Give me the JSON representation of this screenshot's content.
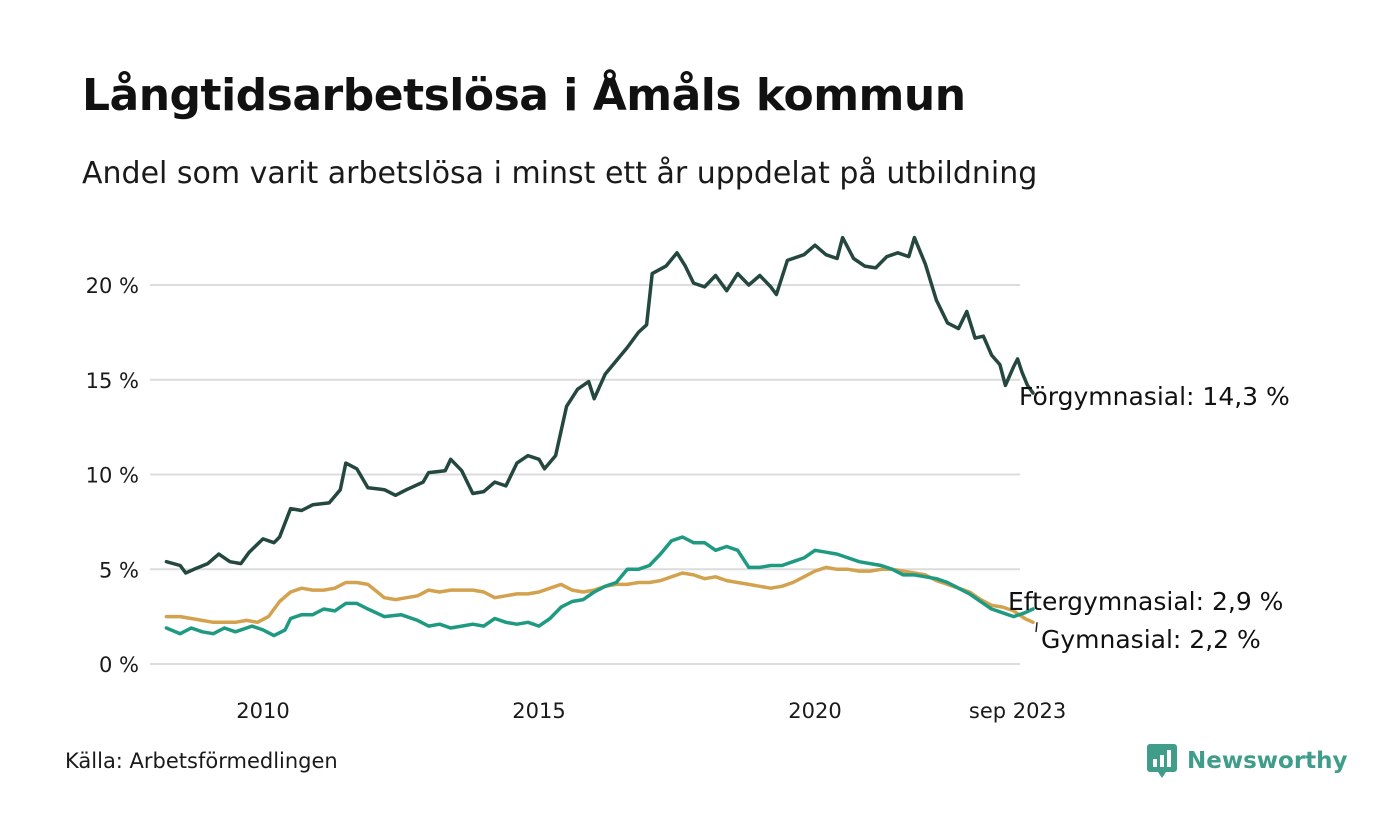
{
  "header": {
    "title": "Långtidsarbetslösa i Åmåls kommun",
    "subtitle": "Andel som varit arbetslösa i minst ett år uppdelat på utbildning"
  },
  "footer": {
    "source": "Källa: Arbetsförmedlingen",
    "brand": "Newsworthy"
  },
  "colors": {
    "forgymnasial": "#24473f",
    "eftergymnasial": "#1f9a82",
    "gymnasial": "#d3a24f",
    "grid": "#dcdcdc",
    "brand": "#3f9d8a"
  },
  "chart_data": {
    "type": "line",
    "title": "Långtidsarbetslösa i Åmåls kommun",
    "subtitle": "Andel som varit arbetslösa i minst ett år uppdelat på utbildning",
    "xlabel": "",
    "ylabel": "",
    "x_range": [
      2008.25,
      2023.67
    ],
    "ylim": [
      0,
      22.5
    ],
    "y_ticks": [
      0,
      5,
      10,
      15,
      20
    ],
    "y_tick_labels": [
      "0 %",
      "5 %",
      "10 %",
      "15 %",
      "20 %"
    ],
    "x_ticks": [
      2010,
      2015,
      2020,
      2023.67
    ],
    "x_tick_labels": [
      "2010",
      "2015",
      "2020",
      "sep 2023"
    ],
    "grid": true,
    "series": [
      {
        "key": "forgymnasial",
        "name": "Förgymnasial",
        "end_label": "Förgymnasial: 14,3 %",
        "points": [
          [
            2008.25,
            5.4
          ],
          [
            2008.5,
            5.2
          ],
          [
            2008.6,
            4.8
          ],
          [
            2008.75,
            5.0
          ],
          [
            2009.0,
            5.3
          ],
          [
            2009.2,
            5.8
          ],
          [
            2009.4,
            5.4
          ],
          [
            2009.6,
            5.3
          ],
          [
            2009.75,
            5.9
          ],
          [
            2010.0,
            6.6
          ],
          [
            2010.2,
            6.4
          ],
          [
            2010.3,
            6.7
          ],
          [
            2010.5,
            8.2
          ],
          [
            2010.7,
            8.1
          ],
          [
            2010.9,
            8.4
          ],
          [
            2011.2,
            8.5
          ],
          [
            2011.4,
            9.2
          ],
          [
            2011.5,
            10.6
          ],
          [
            2011.7,
            10.3
          ],
          [
            2011.9,
            9.3
          ],
          [
            2012.2,
            9.2
          ],
          [
            2012.4,
            8.9
          ],
          [
            2012.6,
            9.2
          ],
          [
            2012.9,
            9.6
          ],
          [
            2013.0,
            10.1
          ],
          [
            2013.3,
            10.2
          ],
          [
            2013.4,
            10.8
          ],
          [
            2013.6,
            10.2
          ],
          [
            2013.8,
            9.0
          ],
          [
            2014.0,
            9.1
          ],
          [
            2014.2,
            9.6
          ],
          [
            2014.4,
            9.4
          ],
          [
            2014.6,
            10.6
          ],
          [
            2014.8,
            11.0
          ],
          [
            2015.0,
            10.8
          ],
          [
            2015.1,
            10.3
          ],
          [
            2015.3,
            11.0
          ],
          [
            2015.5,
            13.6
          ],
          [
            2015.7,
            14.5
          ],
          [
            2015.9,
            14.9
          ],
          [
            2016.0,
            14.0
          ],
          [
            2016.2,
            15.3
          ],
          [
            2016.4,
            16.0
          ],
          [
            2016.6,
            16.7
          ],
          [
            2016.8,
            17.5
          ],
          [
            2016.95,
            17.9
          ],
          [
            2017.05,
            20.6
          ],
          [
            2017.3,
            21.0
          ],
          [
            2017.5,
            21.7
          ],
          [
            2017.65,
            21.0
          ],
          [
            2017.8,
            20.1
          ],
          [
            2018.0,
            19.9
          ],
          [
            2018.2,
            20.5
          ],
          [
            2018.4,
            19.7
          ],
          [
            2018.6,
            20.6
          ],
          [
            2018.8,
            20.0
          ],
          [
            2019.0,
            20.5
          ],
          [
            2019.2,
            19.9
          ],
          [
            2019.3,
            19.5
          ],
          [
            2019.5,
            21.3
          ],
          [
            2019.8,
            21.6
          ],
          [
            2020.0,
            22.1
          ],
          [
            2020.2,
            21.6
          ],
          [
            2020.4,
            21.4
          ],
          [
            2020.5,
            22.5
          ],
          [
            2020.7,
            21.4
          ],
          [
            2020.9,
            21.0
          ],
          [
            2021.1,
            20.9
          ],
          [
            2021.3,
            21.5
          ],
          [
            2021.5,
            21.7
          ],
          [
            2021.7,
            21.5
          ],
          [
            2021.8,
            22.5
          ],
          [
            2022.0,
            21.1
          ],
          [
            2022.2,
            19.2
          ],
          [
            2022.4,
            18.0
          ],
          [
            2022.6,
            17.7
          ],
          [
            2022.75,
            18.6
          ],
          [
            2022.9,
            17.2
          ],
          [
            2023.05,
            17.3
          ],
          [
            2023.2,
            16.3
          ],
          [
            2023.35,
            15.8
          ],
          [
            2023.45,
            14.7
          ],
          [
            2023.6,
            15.7
          ],
          [
            2023.67,
            16.1
          ],
          [
            2023.75,
            15.4
          ],
          [
            2023.85,
            14.7
          ],
          [
            2023.95,
            14.3
          ]
        ]
      },
      {
        "key": "eftergymnasial",
        "name": "Eftergymnasial",
        "end_label": "Eftergymnasial:  2,9 %",
        "points": [
          [
            2008.25,
            1.9
          ],
          [
            2008.5,
            1.6
          ],
          [
            2008.7,
            1.9
          ],
          [
            2008.9,
            1.7
          ],
          [
            2009.1,
            1.6
          ],
          [
            2009.3,
            1.9
          ],
          [
            2009.5,
            1.7
          ],
          [
            2009.8,
            2.0
          ],
          [
            2010.0,
            1.8
          ],
          [
            2010.2,
            1.5
          ],
          [
            2010.4,
            1.8
          ],
          [
            2010.5,
            2.4
          ],
          [
            2010.7,
            2.6
          ],
          [
            2010.9,
            2.6
          ],
          [
            2011.1,
            2.9
          ],
          [
            2011.3,
            2.8
          ],
          [
            2011.5,
            3.2
          ],
          [
            2011.7,
            3.2
          ],
          [
            2011.9,
            2.9
          ],
          [
            2012.2,
            2.5
          ],
          [
            2012.5,
            2.6
          ],
          [
            2012.8,
            2.3
          ],
          [
            2013.0,
            2.0
          ],
          [
            2013.2,
            2.1
          ],
          [
            2013.4,
            1.9
          ],
          [
            2013.6,
            2.0
          ],
          [
            2013.8,
            2.1
          ],
          [
            2014.0,
            2.0
          ],
          [
            2014.2,
            2.4
          ],
          [
            2014.4,
            2.2
          ],
          [
            2014.6,
            2.1
          ],
          [
            2014.8,
            2.2
          ],
          [
            2015.0,
            2.0
          ],
          [
            2015.2,
            2.4
          ],
          [
            2015.4,
            3.0
          ],
          [
            2015.6,
            3.3
          ],
          [
            2015.8,
            3.4
          ],
          [
            2016.0,
            3.8
          ],
          [
            2016.2,
            4.1
          ],
          [
            2016.4,
            4.3
          ],
          [
            2016.6,
            5.0
          ],
          [
            2016.8,
            5.0
          ],
          [
            2017.0,
            5.2
          ],
          [
            2017.2,
            5.8
          ],
          [
            2017.4,
            6.5
          ],
          [
            2017.6,
            6.7
          ],
          [
            2017.8,
            6.4
          ],
          [
            2018.0,
            6.4
          ],
          [
            2018.2,
            6.0
          ],
          [
            2018.4,
            6.2
          ],
          [
            2018.6,
            6.0
          ],
          [
            2018.8,
            5.1
          ],
          [
            2019.0,
            5.1
          ],
          [
            2019.2,
            5.2
          ],
          [
            2019.4,
            5.2
          ],
          [
            2019.6,
            5.4
          ],
          [
            2019.8,
            5.6
          ],
          [
            2020.0,
            6.0
          ],
          [
            2020.2,
            5.9
          ],
          [
            2020.4,
            5.8
          ],
          [
            2020.6,
            5.6
          ],
          [
            2020.8,
            5.4
          ],
          [
            2021.0,
            5.3
          ],
          [
            2021.2,
            5.2
          ],
          [
            2021.4,
            5.0
          ],
          [
            2021.6,
            4.7
          ],
          [
            2021.8,
            4.7
          ],
          [
            2022.0,
            4.6
          ],
          [
            2022.2,
            4.5
          ],
          [
            2022.4,
            4.3
          ],
          [
            2022.6,
            4.0
          ],
          [
            2022.8,
            3.7
          ],
          [
            2023.0,
            3.3
          ],
          [
            2023.2,
            2.9
          ],
          [
            2023.4,
            2.7
          ],
          [
            2023.6,
            2.5
          ],
          [
            2023.8,
            2.7
          ],
          [
            2023.95,
            2.9
          ]
        ]
      },
      {
        "key": "gymnasial",
        "name": "Gymnasial",
        "end_label": "Gymnasial:  2,2 %",
        "points": [
          [
            2008.25,
            2.5
          ],
          [
            2008.5,
            2.5
          ],
          [
            2008.7,
            2.4
          ],
          [
            2008.9,
            2.3
          ],
          [
            2009.1,
            2.2
          ],
          [
            2009.3,
            2.2
          ],
          [
            2009.5,
            2.2
          ],
          [
            2009.7,
            2.3
          ],
          [
            2009.9,
            2.2
          ],
          [
            2010.1,
            2.5
          ],
          [
            2010.3,
            3.3
          ],
          [
            2010.5,
            3.8
          ],
          [
            2010.7,
            4.0
          ],
          [
            2010.9,
            3.9
          ],
          [
            2011.1,
            3.9
          ],
          [
            2011.3,
            4.0
          ],
          [
            2011.5,
            4.3
          ],
          [
            2011.7,
            4.3
          ],
          [
            2011.9,
            4.2
          ],
          [
            2012.2,
            3.5
          ],
          [
            2012.4,
            3.4
          ],
          [
            2012.6,
            3.5
          ],
          [
            2012.8,
            3.6
          ],
          [
            2013.0,
            3.9
          ],
          [
            2013.2,
            3.8
          ],
          [
            2013.4,
            3.9
          ],
          [
            2013.6,
            3.9
          ],
          [
            2013.8,
            3.9
          ],
          [
            2014.0,
            3.8
          ],
          [
            2014.2,
            3.5
          ],
          [
            2014.4,
            3.6
          ],
          [
            2014.6,
            3.7
          ],
          [
            2014.8,
            3.7
          ],
          [
            2015.0,
            3.8
          ],
          [
            2015.2,
            4.0
          ],
          [
            2015.4,
            4.2
          ],
          [
            2015.6,
            3.9
          ],
          [
            2015.8,
            3.8
          ],
          [
            2016.0,
            3.9
          ],
          [
            2016.2,
            4.1
          ],
          [
            2016.4,
            4.2
          ],
          [
            2016.6,
            4.2
          ],
          [
            2016.8,
            4.3
          ],
          [
            2017.0,
            4.3
          ],
          [
            2017.2,
            4.4
          ],
          [
            2017.4,
            4.6
          ],
          [
            2017.6,
            4.8
          ],
          [
            2017.8,
            4.7
          ],
          [
            2018.0,
            4.5
          ],
          [
            2018.2,
            4.6
          ],
          [
            2018.4,
            4.4
          ],
          [
            2018.6,
            4.3
          ],
          [
            2018.8,
            4.2
          ],
          [
            2019.0,
            4.1
          ],
          [
            2019.2,
            4.0
          ],
          [
            2019.4,
            4.1
          ],
          [
            2019.6,
            4.3
          ],
          [
            2019.8,
            4.6
          ],
          [
            2020.0,
            4.9
          ],
          [
            2020.2,
            5.1
          ],
          [
            2020.4,
            5.0
          ],
          [
            2020.6,
            5.0
          ],
          [
            2020.8,
            4.9
          ],
          [
            2021.0,
            4.9
          ],
          [
            2021.2,
            5.0
          ],
          [
            2021.4,
            5.0
          ],
          [
            2021.6,
            4.9
          ],
          [
            2021.8,
            4.8
          ],
          [
            2022.0,
            4.7
          ],
          [
            2022.2,
            4.4
          ],
          [
            2022.4,
            4.2
          ],
          [
            2022.6,
            4.0
          ],
          [
            2022.8,
            3.8
          ],
          [
            2023.0,
            3.4
          ],
          [
            2023.2,
            3.1
          ],
          [
            2023.4,
            3.0
          ],
          [
            2023.6,
            2.8
          ],
          [
            2023.8,
            2.4
          ],
          [
            2023.95,
            2.2
          ]
        ]
      }
    ]
  }
}
